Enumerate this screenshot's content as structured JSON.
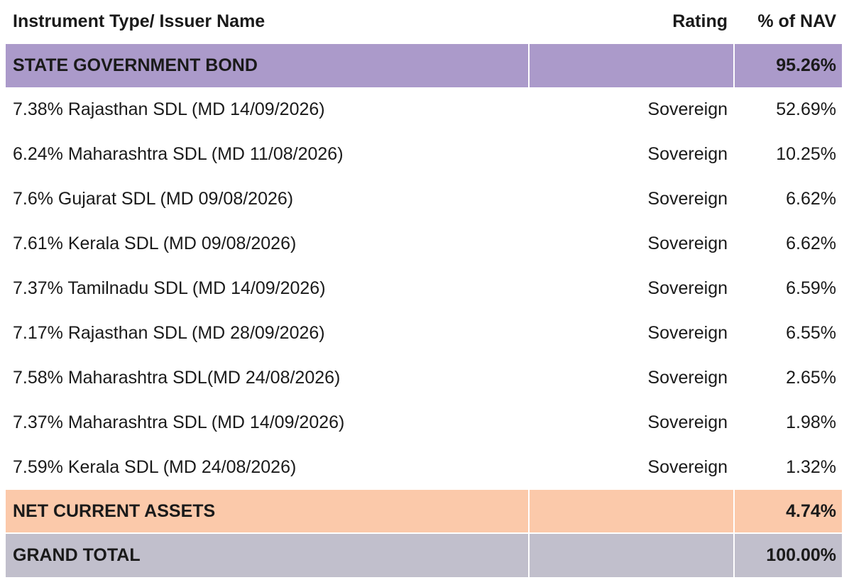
{
  "theme": {
    "section_row_bg": "#ab9aca",
    "net_current_assets_bg": "#fbc9aa",
    "grand_total_bg": "#c1bfcc",
    "text_color": "#1a1a1a",
    "page_bg": "#ffffff"
  },
  "table": {
    "columns": [
      {
        "label": "Instrument Type/ Issuer Name",
        "align": "left"
      },
      {
        "label": "Rating",
        "align": "right"
      },
      {
        "label": "% of NAV",
        "align": "right"
      }
    ],
    "section_row": {
      "name": "STATE GOVERNMENT BOND",
      "rating": "",
      "nav": "95.26%"
    },
    "holdings": [
      {
        "name": "7.38% Rajasthan SDL (MD 14/09/2026)",
        "rating": "Sovereign",
        "nav": "52.69%"
      },
      {
        "name": "6.24% Maharashtra SDL (MD 11/08/2026)",
        "rating": "Sovereign",
        "nav": "10.25%"
      },
      {
        "name": "7.6% Gujarat SDL (MD 09/08/2026)",
        "rating": "Sovereign",
        "nav": "6.62%"
      },
      {
        "name": "7.61% Kerala SDL (MD 09/08/2026)",
        "rating": "Sovereign",
        "nav": "6.62%"
      },
      {
        "name": "7.37% Tamilnadu SDL (MD 14/09/2026)",
        "rating": "Sovereign",
        "nav": "6.59%"
      },
      {
        "name": "7.17% Rajasthan SDL (MD 28/09/2026)",
        "rating": "Sovereign",
        "nav": "6.55%"
      },
      {
        "name": "7.58% Maharashtra SDL(MD 24/08/2026)",
        "rating": "Sovereign",
        "nav": "2.65%"
      },
      {
        "name": "7.37% Maharashtra SDL (MD 14/09/2026)",
        "rating": "Sovereign",
        "nav": "1.98%"
      },
      {
        "name": "7.59% Kerala SDL (MD 24/08/2026)",
        "rating": "Sovereign",
        "nav": "1.32%"
      }
    ],
    "net_current_assets_row": {
      "name": "NET CURRENT ASSETS",
      "rating": "",
      "nav": "4.74%"
    },
    "grand_total_row": {
      "name": "GRAND TOTAL",
      "rating": "",
      "nav": "100.00%"
    }
  }
}
